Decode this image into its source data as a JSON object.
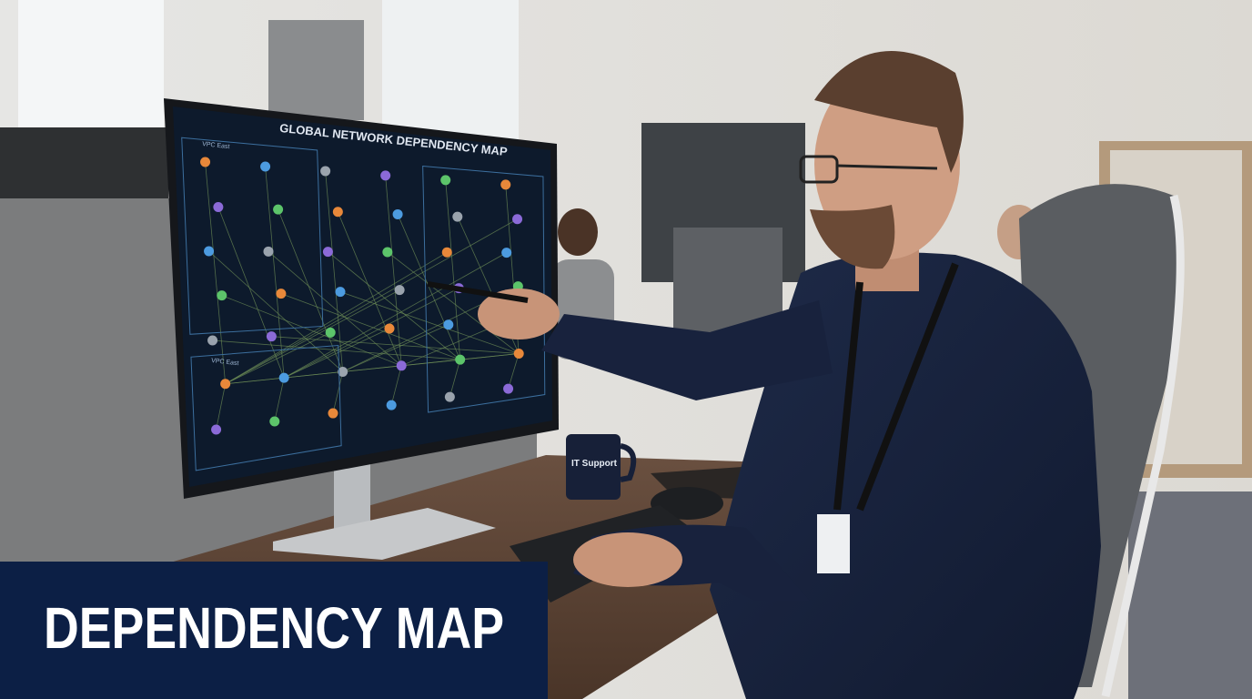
{
  "header": {
    "title": "DEPENDENCY MAP"
  },
  "screen": {
    "title": "GLOBAL NETWORK DEPENDENCY MAP",
    "panels": [
      "VPC East",
      "VPC East"
    ]
  },
  "mug": {
    "label": "IT Support"
  }
}
